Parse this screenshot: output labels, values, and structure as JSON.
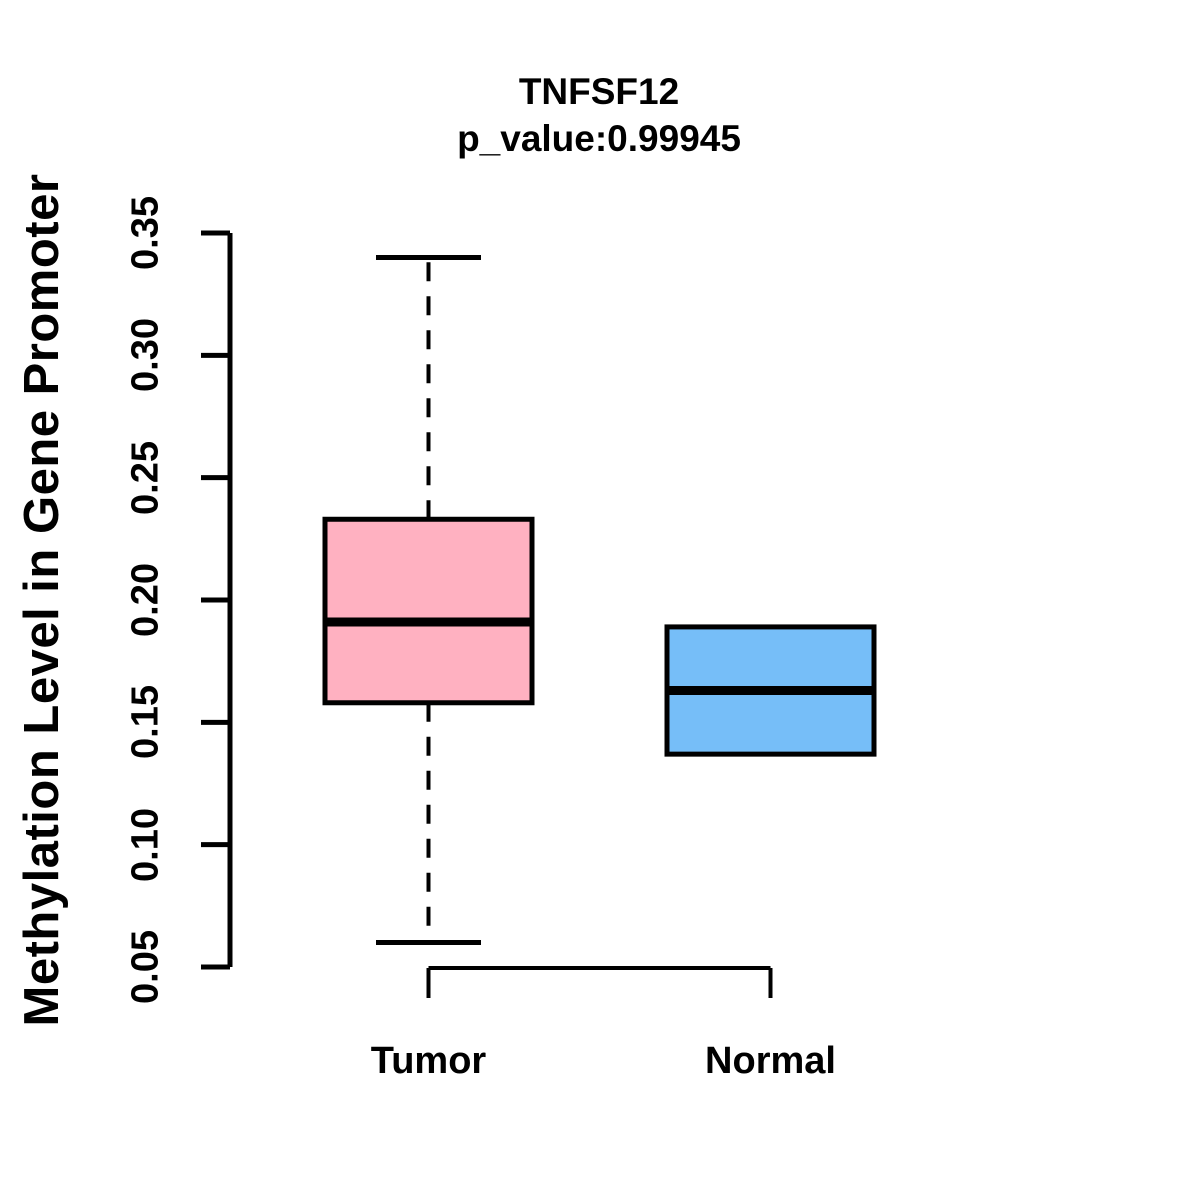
{
  "chart_data": {
    "type": "boxplot",
    "title": "TNFSF12",
    "subtitle": "p_value:0.99945",
    "ylabel": "Methylation Level in Gene Promoter",
    "categories": [
      "Tumor",
      "Normal"
    ],
    "yticks": [
      0.05,
      0.1,
      0.15,
      0.2,
      0.25,
      0.3,
      0.35
    ],
    "ytick_labels": [
      "0.05",
      "0.10",
      "0.15",
      "0.20",
      "0.25",
      "0.30",
      "0.35"
    ],
    "ylim": [
      0.05,
      0.35
    ],
    "grid": false,
    "legend": null,
    "series": [
      {
        "name": "Tumor",
        "color": "#FFB1C1",
        "whisker_low": 0.06,
        "q1": 0.158,
        "median": 0.191,
        "q3": 0.233,
        "whisker_high": 0.34,
        "whisker_style": "dashed"
      },
      {
        "name": "Normal",
        "color": "#76BEF8",
        "whisker_low": 0.137,
        "q1": 0.137,
        "median": 0.163,
        "q3": 0.189,
        "whisker_high": 0.189,
        "whisker_style": "none"
      }
    ],
    "colors": {
      "tumor_fill": "#FFB1C1",
      "normal_fill": "#76BEF8",
      "line": "#000000",
      "background": "#FFFFFF"
    }
  }
}
